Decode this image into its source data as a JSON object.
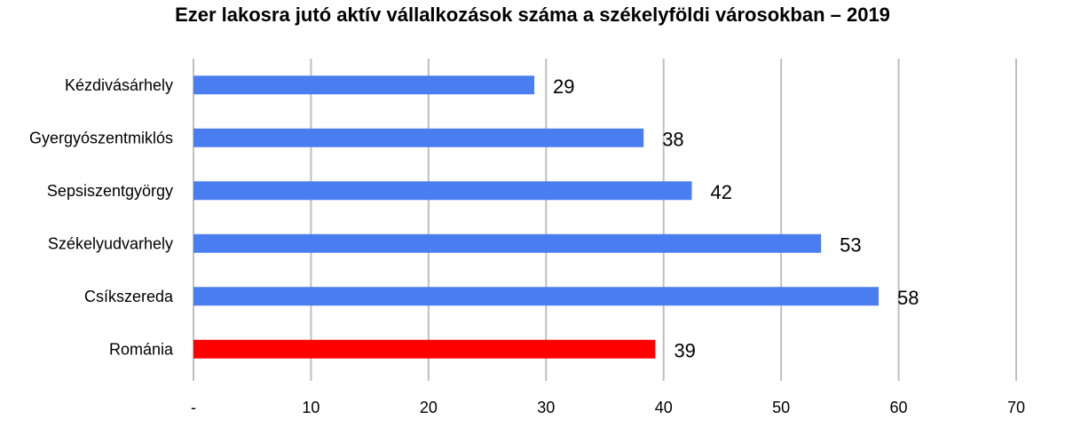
{
  "chart_data": {
    "type": "bar",
    "orientation": "horizontal",
    "title": "Ezer lakosra jutó aktív vállalkozások száma a székelyföldi városokban – 2019",
    "categories": [
      "Kézdivásárhely",
      "Gyergyószentmiklós",
      "Sepsiszentgyörgy",
      "Székelyudvarhely",
      "Csíkszereda",
      "Románia"
    ],
    "values": [
      29,
      38.3,
      42.4,
      53.4,
      58.3,
      39.3
    ],
    "value_labels": [
      "29",
      "38",
      "42",
      "53",
      "58",
      "39"
    ],
    "bar_colors": [
      "#4a7ef0",
      "#4a7ef0",
      "#4a7ef0",
      "#4a7ef0",
      "#4a7ef0",
      "#ff0000"
    ],
    "xlim": [
      0,
      70
    ],
    "x_ticks": [
      0,
      10,
      20,
      30,
      40,
      50,
      60,
      70
    ],
    "x_tick_labels": [
      "-",
      "10",
      "20",
      "30",
      "40",
      "50",
      "60",
      "70"
    ],
    "xlabel": "",
    "ylabel": "",
    "grid": "vertical",
    "legend": "none"
  }
}
